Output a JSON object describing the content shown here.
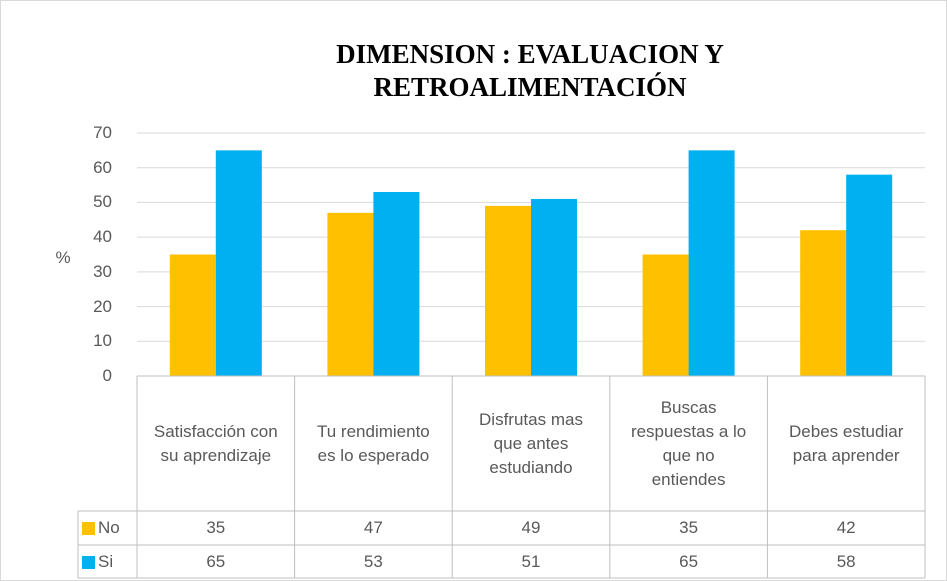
{
  "chart_data": {
    "type": "bar",
    "title": "DIMENSION : EVALUACION Y RETROALIMENTACIÓN",
    "ylabel": "%",
    "categories": [
      "Satisfacción con su aprendizaje",
      "Tu rendimiento es lo esperado",
      "Disfrutas mas que antes estudiando",
      "Buscas respuestas a lo que no entiendes",
      "Debes estudiar para aprender"
    ],
    "series": [
      {
        "name": "No",
        "color": "#FFC000",
        "values": [
          35,
          47,
          49,
          35,
          42
        ]
      },
      {
        "name": "Si",
        "color": "#00B0F0",
        "values": [
          65,
          53,
          51,
          65,
          58
        ]
      }
    ],
    "ylim": [
      0,
      70
    ],
    "yticks": [
      0,
      10,
      20,
      30,
      40,
      50,
      60,
      70
    ],
    "grid": true
  }
}
